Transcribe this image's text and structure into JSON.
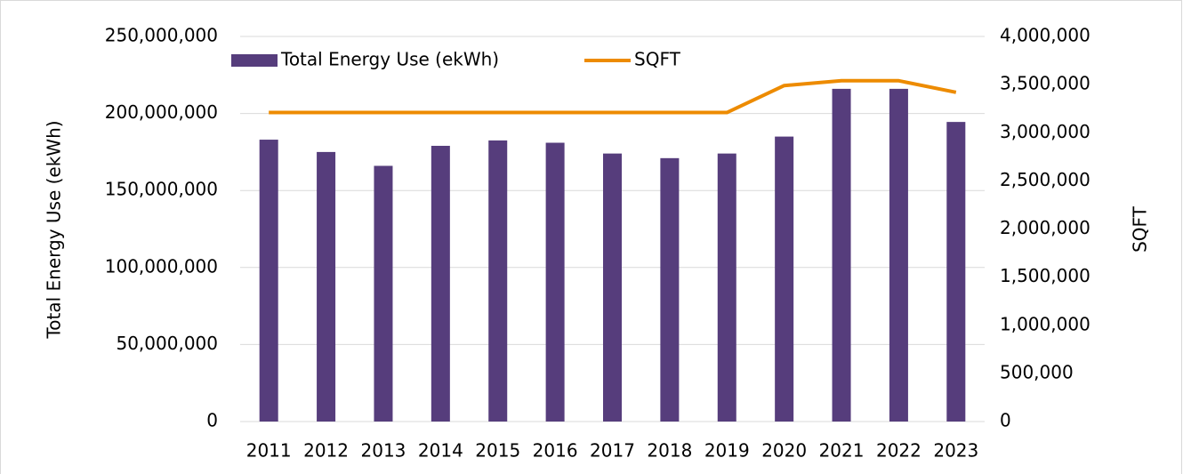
{
  "chart_data": {
    "type": "bar",
    "categories": [
      "2011",
      "2012",
      "2013",
      "2014",
      "2015",
      "2016",
      "2017",
      "2018",
      "2019",
      "2020",
      "2021",
      "2022",
      "2023"
    ],
    "series": [
      {
        "name": "Total Energy Use (ekWh)",
        "type": "bar",
        "color": "#563d7c",
        "values": [
          183000000,
          175000000,
          166000000,
          179000000,
          182500000,
          181000000,
          174000000,
          171000000,
          174000000,
          185000000,
          216000000,
          216000000,
          194500000
        ]
      },
      {
        "name": "SQFT",
        "type": "line",
        "axis": "y2",
        "color": "#ed8b00",
        "values": [
          3210000,
          3210000,
          3210000,
          3210000,
          3210000,
          3210000,
          3210000,
          3210000,
          3210000,
          3490000,
          3540000,
          3540000,
          3420000
        ]
      }
    ],
    "y_label": "Total Energy Use (ekWh)",
    "y2_label": "SQFT",
    "ylim": [
      0,
      250000000
    ],
    "yticks": [
      0,
      {
        "value": 50000000,
        "label": "50,000,000"
      },
      {
        "value": 100000000,
        "label": "100,000,000"
      },
      {
        "value": 150000000,
        "label": "150,000,000"
      },
      {
        "value": 200000000,
        "label": "200,000,000"
      },
      {
        "value": 250000000,
        "label": "250,000,000"
      }
    ],
    "y2lim": [
      0,
      4000000
    ],
    "y2ticks": [
      0,
      {
        "value": 500000,
        "label": "500,000"
      },
      {
        "value": 1000000,
        "label": "1,000,000"
      },
      {
        "value": 1500000,
        "label": "1,500,000"
      },
      {
        "value": 2000000,
        "label": "2,000,000"
      },
      {
        "value": 2500000,
        "label": "2,500,000"
      },
      {
        "value": 3000000,
        "label": "3,000,000"
      },
      {
        "value": 3500000,
        "label": "3,500,000"
      },
      {
        "value": 4000000,
        "label": "4,000,000"
      }
    ],
    "grid": true,
    "legend": "top"
  }
}
